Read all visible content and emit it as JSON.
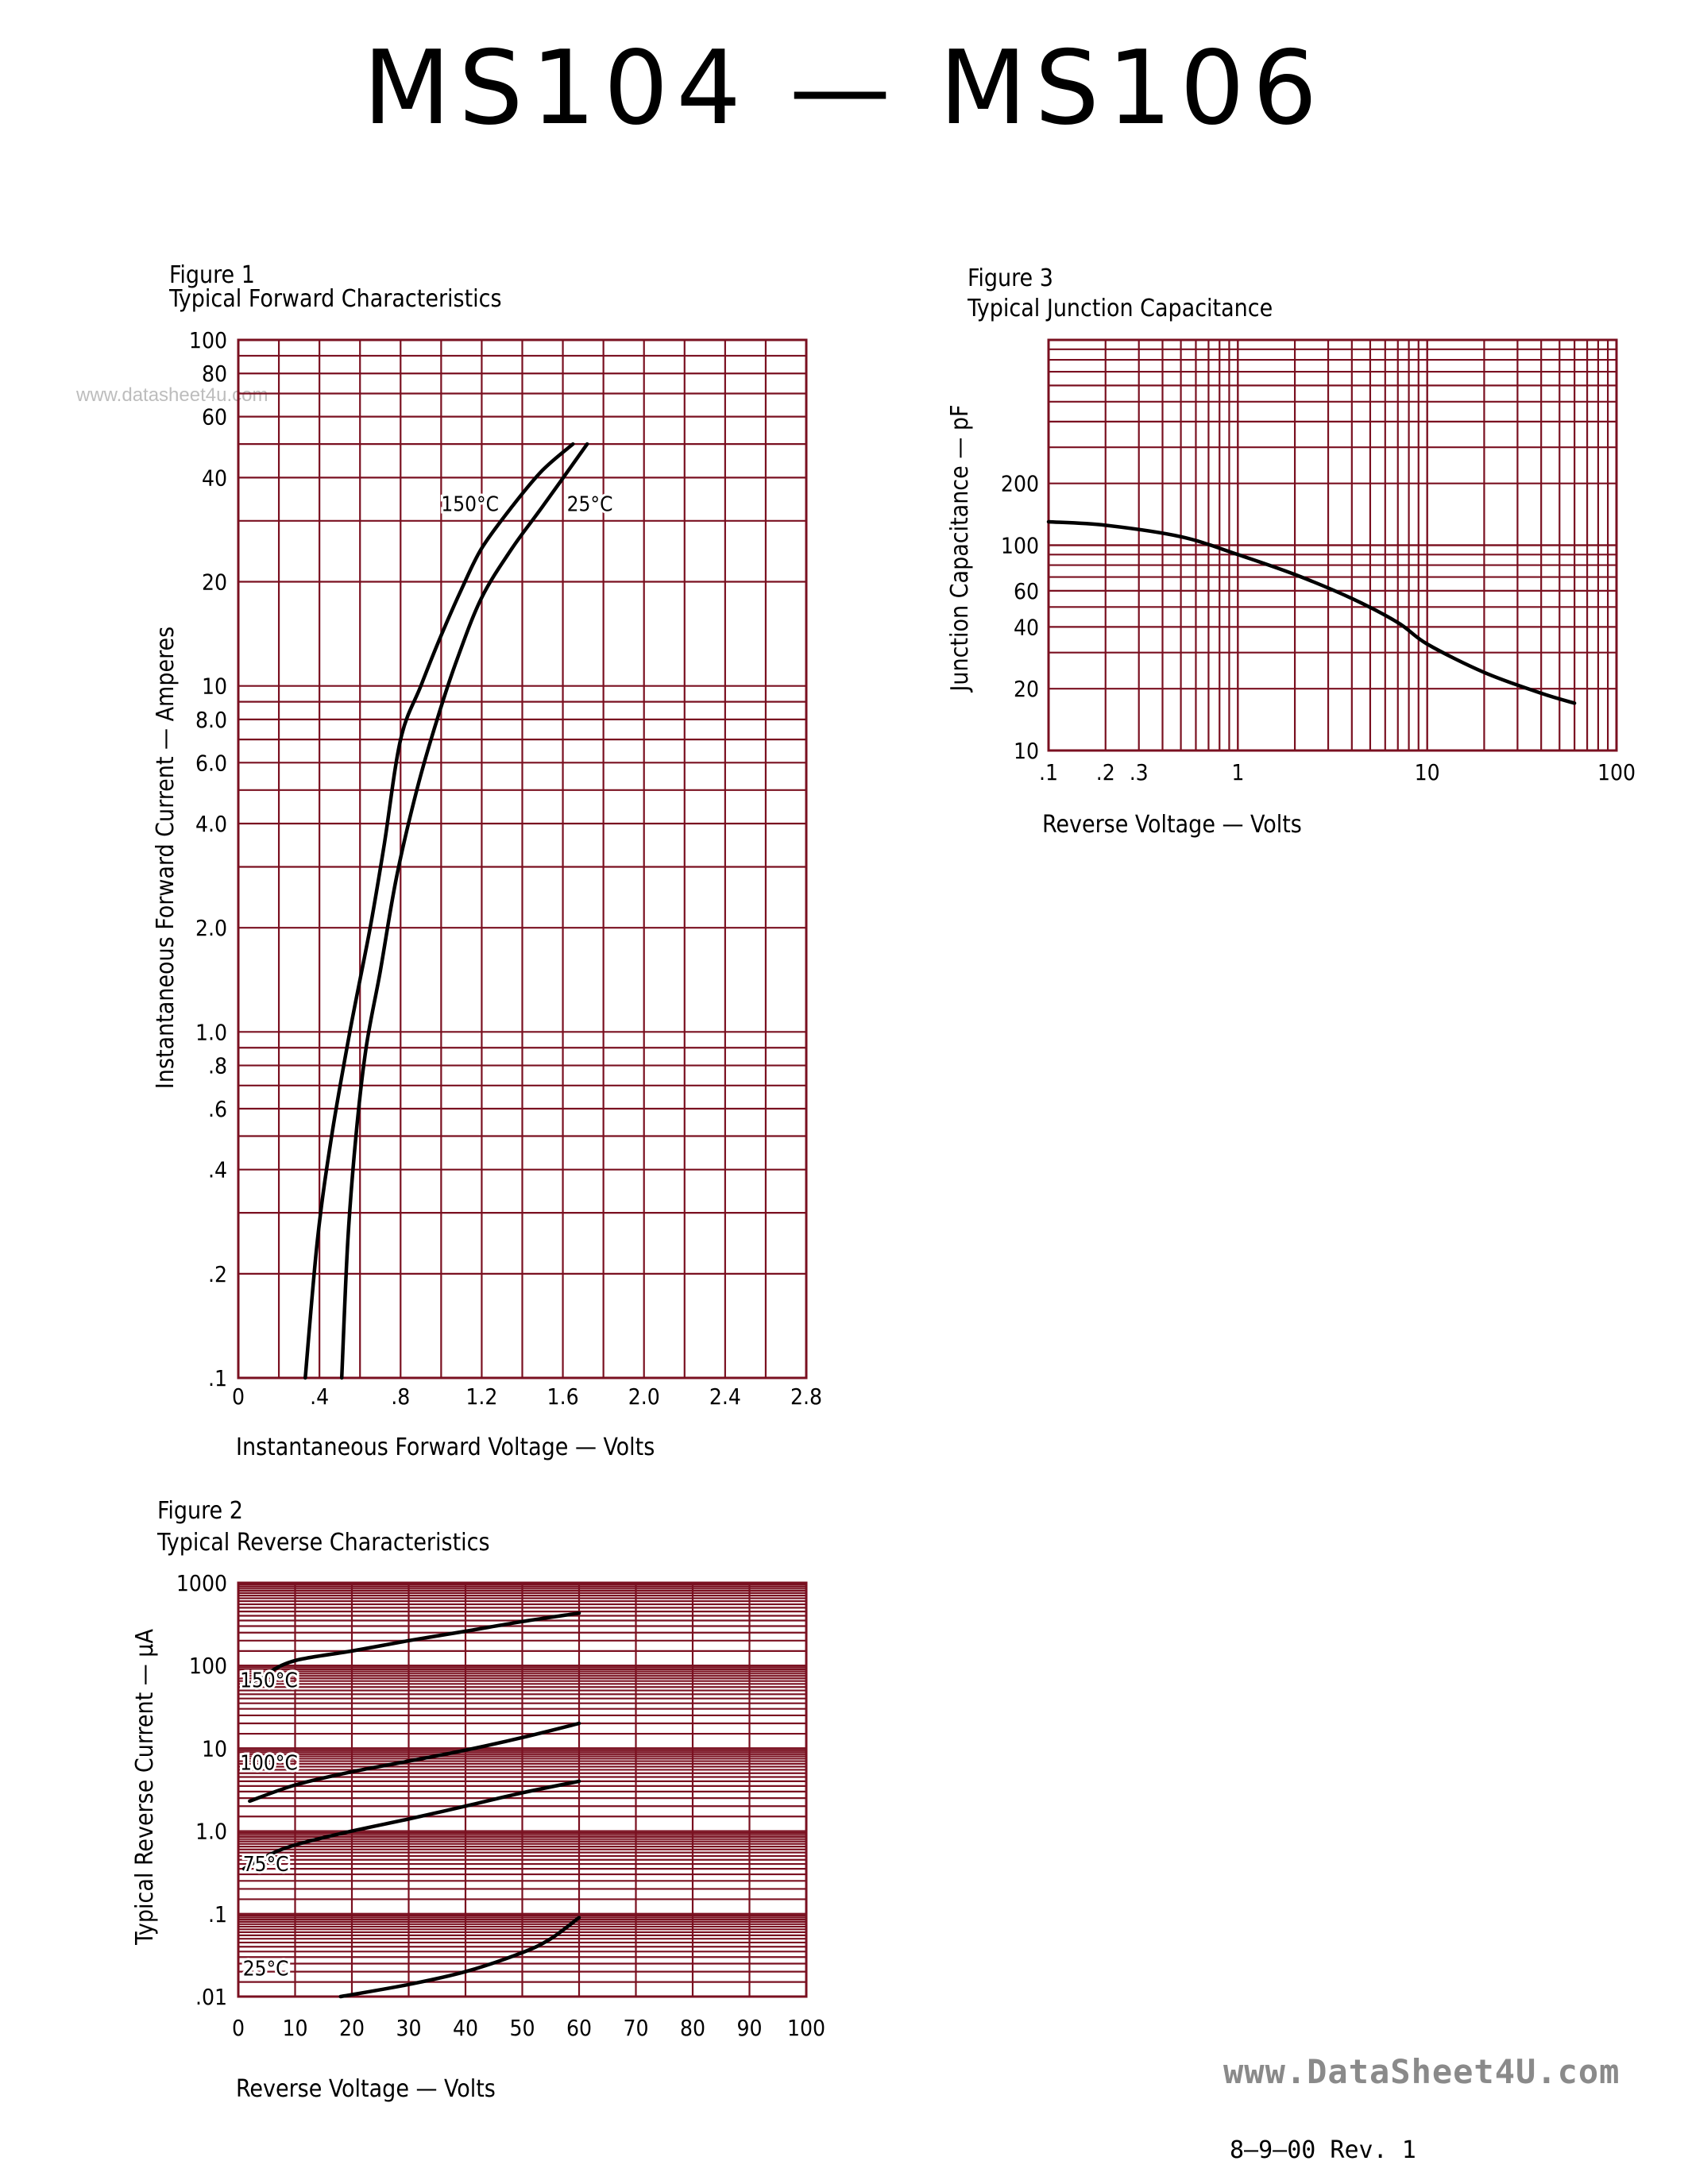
{
  "page": {
    "title": "MS104  —  MS106",
    "watermark_small": "www.datasheet4u.com",
    "watermark_large": "www.DataSheet4U.com",
    "revision": "8–9–00   Rev. 1"
  },
  "colors": {
    "grid": "#7a1020",
    "curve": "#000000"
  },
  "chart_data": [
    {
      "id": "fig1",
      "type": "line",
      "figure_label": "Figure 1",
      "title": "Typical Forward Characteristics",
      "xlabel": "Instantaneous Forward Voltage — Volts",
      "ylabel": "Instantaneous Forward Current — Amperes",
      "xscale": "linear",
      "yscale": "log",
      "xlim": [
        0,
        2.8
      ],
      "ylim": [
        0.1,
        100
      ],
      "x_ticks": [
        {
          "v": 0,
          "label": "0"
        },
        {
          "v": 0.4,
          "label": ".4"
        },
        {
          "v": 0.8,
          "label": ".8"
        },
        {
          "v": 1.2,
          "label": "1.2"
        },
        {
          "v": 1.6,
          "label": "1.6"
        },
        {
          "v": 2.0,
          "label": "2.0"
        },
        {
          "v": 2.4,
          "label": "2.4"
        },
        {
          "v": 2.8,
          "label": "2.8"
        }
      ],
      "y_ticks": [
        {
          "v": 100,
          "label": "100"
        },
        {
          "v": 80,
          "label": "80"
        },
        {
          "v": 60,
          "label": "60"
        },
        {
          "v": 40,
          "label": "40"
        },
        {
          "v": 20,
          "label": "20"
        },
        {
          "v": 10,
          "label": "10"
        },
        {
          "v": 8,
          "label": "8.0"
        },
        {
          "v": 6,
          "label": "6.0"
        },
        {
          "v": 4,
          "label": "4.0"
        },
        {
          "v": 2,
          "label": "2.0"
        },
        {
          "v": 1,
          "label": "1.0"
        },
        {
          "v": 0.8,
          "label": ".8"
        },
        {
          "v": 0.6,
          "label": ".6"
        },
        {
          "v": 0.4,
          "label": ".4"
        },
        {
          "v": 0.2,
          "label": ".2"
        },
        {
          "v": 0.1,
          "label": ".1"
        }
      ],
      "x_grid": [
        0,
        0.2,
        0.4,
        0.6,
        0.8,
        1.0,
        1.2,
        1.4,
        1.6,
        1.8,
        2.0,
        2.2,
        2.4,
        2.6,
        2.8
      ],
      "y_grid": [
        0.1,
        0.2,
        0.3,
        0.4,
        0.5,
        0.6,
        0.7,
        0.8,
        0.9,
        1,
        2,
        3,
        4,
        5,
        6,
        7,
        8,
        9,
        10,
        20,
        30,
        40,
        50,
        60,
        70,
        80,
        90,
        100
      ],
      "series": [
        {
          "name": "150°C",
          "x": [
            0.33,
            0.39,
            0.46,
            0.55,
            0.65,
            0.72,
            0.8,
            0.9,
            1.0,
            1.1,
            1.2,
            1.35,
            1.5,
            1.65
          ],
          "y": [
            0.1,
            0.25,
            0.5,
            1.0,
            2.0,
            3.5,
            7,
            10,
            14,
            19,
            25,
            33,
            42,
            50
          ]
        },
        {
          "name": "25°C",
          "x": [
            0.51,
            0.54,
            0.58,
            0.63,
            0.7,
            0.78,
            0.88,
            0.98,
            1.08,
            1.2,
            1.35,
            1.5,
            1.72
          ],
          "y": [
            0.1,
            0.25,
            0.5,
            0.9,
            1.5,
            2.8,
            5,
            8,
            12,
            18,
            25,
            33,
            50
          ]
        }
      ],
      "annotations": [
        {
          "text": "150°C",
          "x": 1.0,
          "y": 32
        },
        {
          "text": "25°C",
          "x": 1.62,
          "y": 32
        }
      ]
    },
    {
      "id": "fig2",
      "type": "line",
      "figure_label": "Figure 2",
      "title": "Typical Reverse Characteristics",
      "xlabel": "Reverse Voltage — Volts",
      "ylabel": "Typical Reverse Current — μA",
      "xscale": "linear",
      "yscale": "log",
      "xlim": [
        0,
        100
      ],
      "ylim": [
        0.01,
        1000
      ],
      "x_ticks": [
        {
          "v": 0,
          "label": "0"
        },
        {
          "v": 10,
          "label": "10"
        },
        {
          "v": 20,
          "label": "20"
        },
        {
          "v": 30,
          "label": "30"
        },
        {
          "v": 40,
          "label": "40"
        },
        {
          "v": 50,
          "label": "50"
        },
        {
          "v": 60,
          "label": "60"
        },
        {
          "v": 70,
          "label": "70"
        },
        {
          "v": 80,
          "label": "80"
        },
        {
          "v": 90,
          "label": "90"
        },
        {
          "v": 100,
          "label": "100"
        }
      ],
      "y_ticks": [
        {
          "v": 1000,
          "label": "1000"
        },
        {
          "v": 100,
          "label": "100"
        },
        {
          "v": 10,
          "label": "10"
        },
        {
          "v": 1,
          "label": "1.0"
        },
        {
          "v": 0.1,
          "label": ".1"
        },
        {
          "v": 0.01,
          "label": ".01"
        }
      ],
      "x_grid": [
        0,
        10,
        20,
        30,
        40,
        50,
        60,
        70,
        80,
        90,
        100
      ],
      "y_grid_decades": [
        0.01,
        0.1,
        1,
        10,
        100,
        1000
      ],
      "series": [
        {
          "name": "150°C",
          "x": [
            2,
            5,
            10,
            20,
            30,
            40,
            50,
            60
          ],
          "y": [
            60,
            80,
            115,
            150,
            200,
            260,
            340,
            430
          ]
        },
        {
          "name": "100°C",
          "x": [
            2,
            10,
            20,
            30,
            40,
            50,
            60
          ],
          "y": [
            2.3,
            3.6,
            5.2,
            7,
            9.5,
            13.5,
            20
          ]
        },
        {
          "name": "75°C",
          "x": [
            1,
            5,
            10,
            20,
            30,
            40,
            50,
            60
          ],
          "y": [
            0.35,
            0.5,
            0.68,
            1.0,
            1.4,
            2.0,
            2.9,
            4.0
          ]
        },
        {
          "name": "25°C",
          "x": [
            18,
            30,
            40,
            50,
            55,
            60
          ],
          "y": [
            0.01,
            0.014,
            0.02,
            0.034,
            0.05,
            0.09
          ]
        }
      ],
      "annotations": [
        {
          "text": "150°C",
          "x": 0.3,
          "y": 55
        },
        {
          "text": "100°C",
          "x": 0.3,
          "y": 5.5
        },
        {
          "text": "75°C",
          "x": 0.8,
          "y": 0.33
        },
        {
          "text": "25°C",
          "x": 0.8,
          "y": 0.018
        }
      ]
    },
    {
      "id": "fig3",
      "type": "line",
      "figure_label": "Figure 3",
      "title": "Typical Junction Capacitance",
      "xlabel": "Reverse Voltage — Volts",
      "ylabel": "Junction Capacitance — pF",
      "xscale": "log",
      "yscale": "log",
      "xlim": [
        0.1,
        100
      ],
      "ylim": [
        10,
        1000
      ],
      "x_ticks": [
        {
          "v": 0.1,
          "label": ".1"
        },
        {
          "v": 0.2,
          "label": ".2"
        },
        {
          "v": 0.3,
          "label": ".3"
        },
        {
          "v": 1,
          "label": "1"
        },
        {
          "v": 10,
          "label": "10"
        },
        {
          "v": 100,
          "label": "100"
        }
      ],
      "y_ticks": [
        {
          "v": 200,
          "label": "200"
        },
        {
          "v": 100,
          "label": "100"
        },
        {
          "v": 60,
          "label": "60"
        },
        {
          "v": 40,
          "label": "40"
        },
        {
          "v": 20,
          "label": "20"
        },
        {
          "v": 10,
          "label": "10"
        }
      ],
      "series": [
        {
          "name": "Capacitance",
          "x": [
            0.1,
            0.2,
            0.5,
            1,
            2,
            4,
            7,
            10,
            20,
            40,
            60
          ],
          "y": [
            130,
            125,
            110,
            90,
            72,
            55,
            42,
            33,
            24,
            19,
            17
          ]
        }
      ]
    }
  ]
}
